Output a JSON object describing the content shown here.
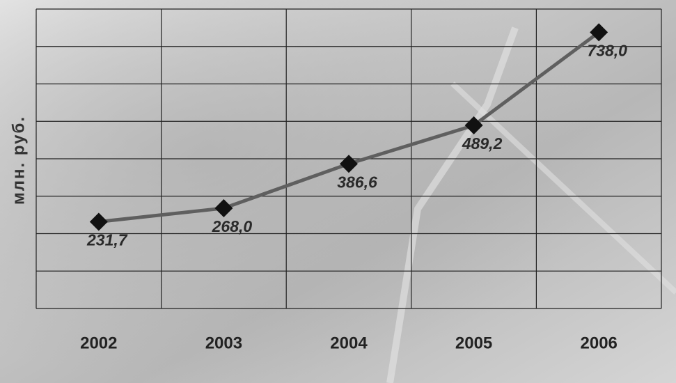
{
  "chart_data": {
    "type": "line",
    "y_label": "млн. руб.",
    "categories": [
      "2002",
      "2003",
      "2004",
      "2005",
      "2006"
    ],
    "series": [
      {
        "color": "#5f5f5f",
        "marker_color": "#111111",
        "values": [
          231.7,
          268.0,
          386.6,
          489.2,
          738.0
        ],
        "value_labels": [
          "231,7",
          "268,0",
          "386,6",
          "489,2",
          "738,0"
        ]
      }
    ],
    "ylim": [
      0,
      800
    ],
    "yticks": [
      0,
      100,
      200,
      300,
      400,
      500,
      600,
      700,
      800
    ],
    "grid": true
  }
}
